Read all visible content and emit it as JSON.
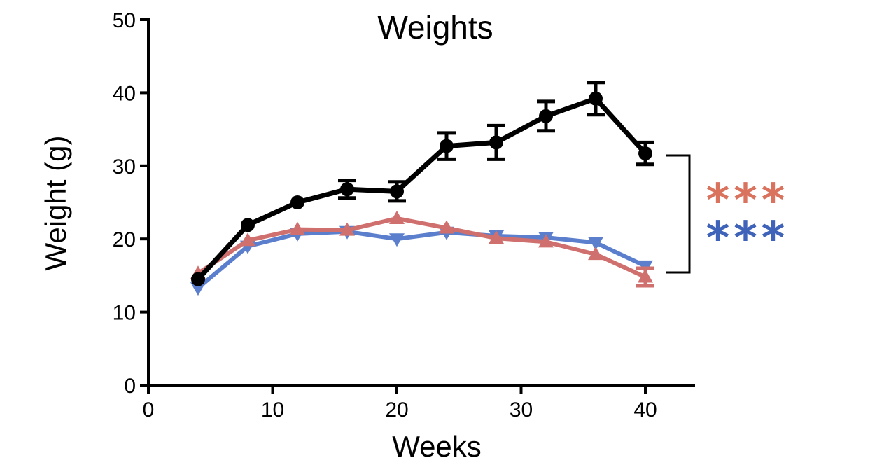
{
  "chart_data": {
    "type": "line",
    "title": "Weights",
    "xlabel": "Weeks",
    "ylabel": "Weight (g)",
    "xlim": [
      0,
      44
    ],
    "ylim": [
      0,
      50
    ],
    "xticks": [
      "0",
      "10",
      "20",
      "30",
      "40"
    ],
    "yticks": [
      "0",
      "10",
      "20",
      "30",
      "40",
      "50"
    ],
    "x": [
      4,
      8,
      12,
      16,
      20,
      24,
      28,
      32,
      36,
      40
    ],
    "series": [
      {
        "color": "#000000",
        "marker": "circle",
        "values": [
          14.5,
          21.9,
          25.0,
          26.8,
          26.5,
          32.7,
          33.2,
          36.8,
          39.2,
          31.7
        ],
        "error": [
          0.6,
          0.6,
          0.5,
          1.2,
          1.3,
          1.8,
          2.3,
          2.0,
          2.2,
          1.5
        ]
      },
      {
        "color": "#d0706e",
        "marker": "triangle-up",
        "values": [
          15.3,
          19.8,
          21.3,
          21.2,
          22.8,
          21.5,
          20.1,
          19.6,
          17.9,
          14.8
        ],
        "error": [
          0.4,
          0.4,
          0.4,
          0.4,
          0.4,
          0.4,
          0.4,
          0.4,
          0.4,
          1.2
        ]
      },
      {
        "color": "#5b7fcc",
        "marker": "triangle-down",
        "values": [
          13.3,
          19.0,
          20.7,
          21.0,
          20.0,
          20.9,
          20.4,
          20.2,
          19.5,
          16.3
        ],
        "error": [
          0.4,
          0.4,
          0.4,
          0.4,
          0.4,
          0.4,
          0.4,
          0.4,
          0.4,
          0.6
        ]
      }
    ],
    "annotations": [
      {
        "text": "***",
        "color": "#d9735e"
      },
      {
        "text": "***",
        "color": "#3f63b8"
      }
    ],
    "grid": false,
    "legend": "none"
  }
}
